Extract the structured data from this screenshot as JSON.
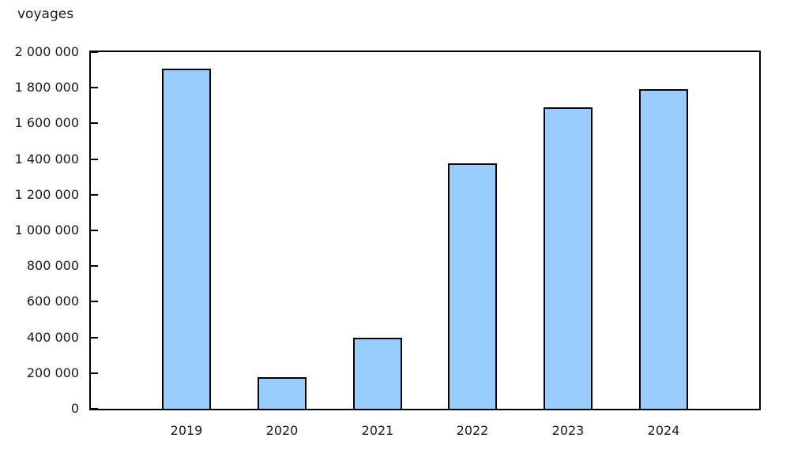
{
  "chart_data": {
    "type": "bar",
    "title": "voyages",
    "categories": [
      "2019",
      "2020",
      "2021",
      "2022",
      "2023",
      "2024"
    ],
    "values": [
      1905000,
      175000,
      400000,
      1375000,
      1690000,
      1790000
    ],
    "xlabel": "",
    "ylabel": "voyages",
    "ylim": [
      0,
      2000000
    ],
    "y_ticks": [
      0,
      200000,
      400000,
      600000,
      800000,
      1000000,
      1200000,
      1400000,
      1600000,
      1800000,
      2000000
    ],
    "y_tick_labels": [
      "0",
      "200 000",
      "400 000",
      "600 000",
      "800 000",
      "1 000 000",
      "1 200 000",
      "1 400 000",
      "1 600 000",
      "1 800 000",
      "2 000 000"
    ],
    "legend_position": "none",
    "grid": "off",
    "bar_fill_color": "#99CCFF",
    "bar_border_color": "#000000",
    "axis_color": "#000000",
    "text_color": "#1a1a1a"
  }
}
